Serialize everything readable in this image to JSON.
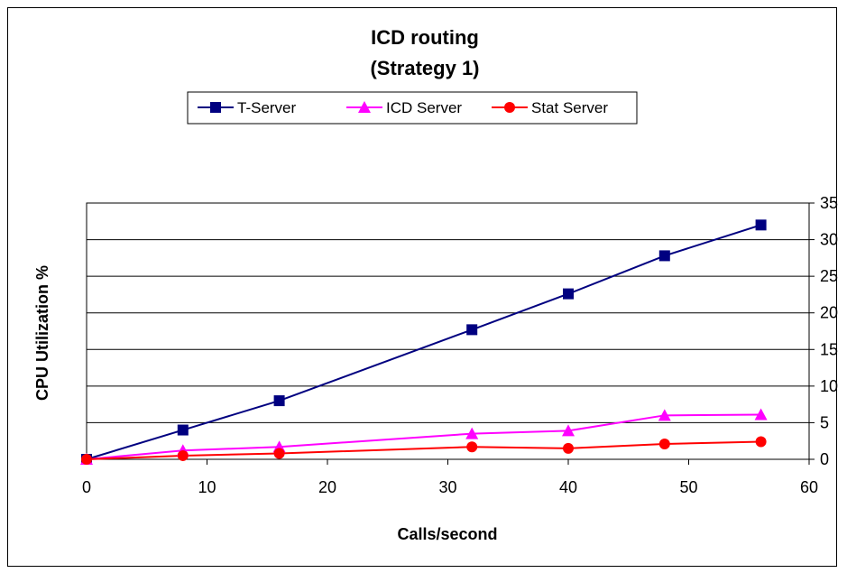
{
  "chart_data": {
    "type": "line",
    "title": "ICD routing",
    "subtitle": "(Strategy 1)",
    "xlabel": "Calls/second",
    "ylabel": "CPU Utilization %",
    "xlim": [
      0,
      60
    ],
    "ylim": [
      0,
      35
    ],
    "xticks": [
      "0",
      "10",
      "20",
      "30",
      "40",
      "50",
      "60"
    ],
    "yticks": [
      "0",
      "5",
      "10",
      "15",
      "20",
      "25",
      "30",
      "35"
    ],
    "y_axis_side": "right",
    "grid": "horizontal",
    "legend_position": "top",
    "x": [
      0,
      8,
      16,
      32,
      40,
      48,
      56
    ],
    "series": [
      {
        "name": "T-Server",
        "color": "#000080",
        "marker": "square",
        "values": [
          0,
          4,
          8,
          17.7,
          22.6,
          27.8,
          32
        ]
      },
      {
        "name": "ICD Server",
        "color": "#ff00ff",
        "marker": "triangle",
        "values": [
          0,
          1.2,
          1.7,
          3.5,
          3.9,
          6,
          6.1
        ]
      },
      {
        "name": "Stat Server",
        "color": "#ff0000",
        "marker": "circle",
        "values": [
          0,
          0.5,
          0.8,
          1.7,
          1.5,
          2.1,
          2.4
        ]
      }
    ]
  }
}
